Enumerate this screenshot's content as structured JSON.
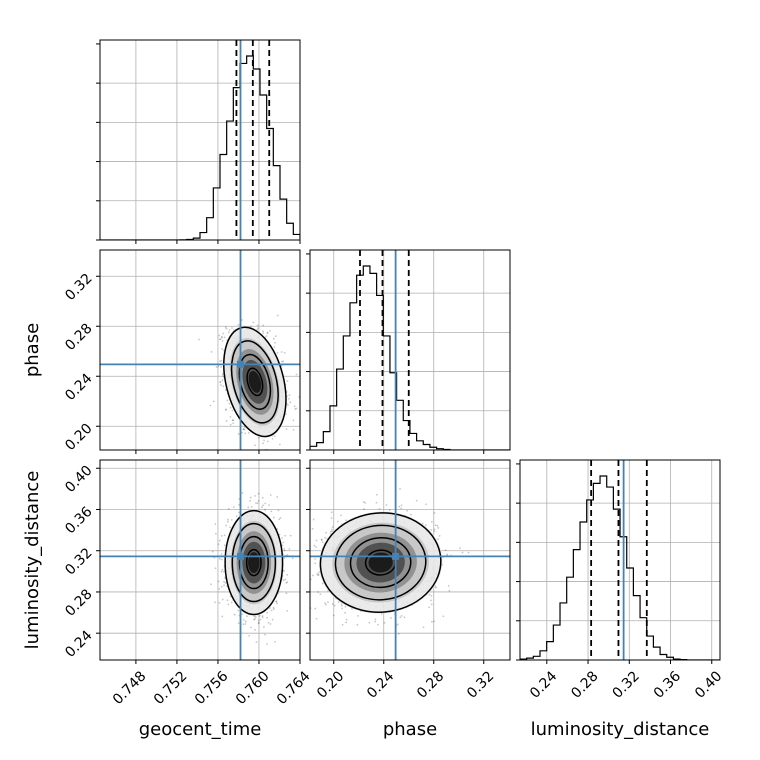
{
  "chart_data": {
    "type": "corner",
    "parameters": [
      {
        "name": "geocent_time",
        "label": "geocent_time",
        "range": [
          0.7445,
          0.764
        ],
        "ticks": [
          0.748,
          0.752,
          0.756,
          0.76,
          0.764
        ],
        "tick_labels": [
          "0.748",
          "0.752",
          "0.756",
          "0.760",
          "0.764"
        ],
        "truth": 0.7582,
        "quantiles": [
          0.7578,
          0.7594,
          0.761
        ],
        "hist_edges_start": 0.7445,
        "hist_bin_width": 0.00065,
        "hist_counts": [
          0,
          0,
          0,
          0,
          0,
          0,
          0,
          0,
          0,
          0,
          0,
          0,
          0.1,
          0.3,
          1,
          4,
          12,
          28,
          46,
          64,
          82,
          95,
          99,
          92,
          78,
          60,
          40,
          22,
          9,
          3,
          1
        ]
      },
      {
        "name": "phase",
        "label": "phase",
        "range": [
          0.181,
          0.341
        ],
        "ticks": [
          0.2,
          0.24,
          0.28,
          0.32
        ],
        "tick_labels": [
          "0.20",
          "0.24",
          "0.28",
          "0.32"
        ],
        "truth": 0.2495,
        "quantiles": [
          0.221,
          0.239,
          0.26
        ],
        "hist_edges_start": 0.181,
        "hist_bin_width": 0.00533,
        "hist_counts": [
          2,
          4,
          10,
          24,
          44,
          62,
          80,
          95,
          100,
          96,
          84,
          62,
          42,
          27,
          16,
          9,
          5,
          3,
          1.5,
          0.7,
          0.3,
          0,
          0,
          0,
          0,
          0,
          0,
          0,
          0,
          0
        ]
      },
      {
        "name": "luminosity_distance",
        "label": "luminosity_distance",
        "range": [
          0.214,
          0.408
        ],
        "ticks": [
          0.24,
          0.28,
          0.32,
          0.36,
          0.4
        ],
        "tick_labels": [
          "0.24",
          "0.28",
          "0.32",
          "0.36",
          "0.40"
        ],
        "truth": 0.3145,
        "quantiles": [
          0.283,
          0.3095,
          0.337
        ],
        "hist_edges_start": 0.214,
        "hist_bin_width": 0.00647,
        "hist_counts": [
          0.5,
          1,
          2,
          5,
          10,
          19,
          31,
          45,
          60,
          75,
          87,
          96,
          100,
          94,
          82,
          67,
          50,
          35,
          23,
          13,
          7,
          3,
          1.5,
          0.5,
          0.2,
          0,
          0,
          0,
          0,
          0
        ]
      }
    ],
    "pairs": [
      {
        "x": "geocent_time",
        "y": "phase",
        "center": [
          0.7596,
          0.2355
        ],
        "sigma": [
          0.00135,
          0.0195
        ],
        "correlation": -0.32
      },
      {
        "x": "geocent_time",
        "y": "luminosity_distance",
        "center": [
          0.7595,
          0.3085
        ],
        "sigma": [
          0.00125,
          0.0225
        ],
        "correlation": 0.0
      },
      {
        "x": "phase",
        "y": "luminosity_distance",
        "center": [
          0.2375,
          0.3085
        ],
        "sigma": [
          0.0215,
          0.0215
        ],
        "correlation": 0.03
      }
    ],
    "contour_levels_sigma": [
      0.5,
      1.0,
      1.5,
      2.0
    ],
    "colors": {
      "hist": "#000000",
      "truth": "#4682b4",
      "quantile": "#000000",
      "grid": "#b0b0b0"
    },
    "grid": true
  }
}
